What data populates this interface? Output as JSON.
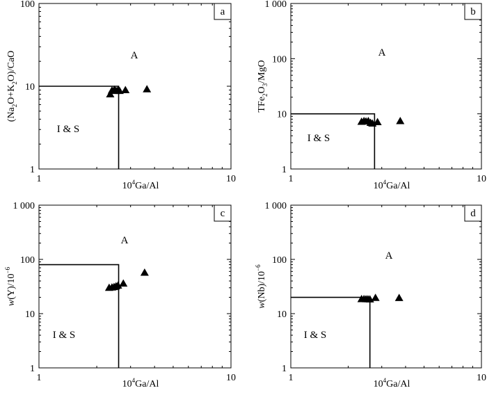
{
  "chart_data": [
    {
      "type": "scatter",
      "panel_label": "a",
      "xscale": "log",
      "yscale": "log",
      "xlim": [
        1,
        10
      ],
      "ylim": [
        1,
        100
      ],
      "xticks": [
        {
          "v": 1,
          "label": "1"
        },
        {
          "v": 10,
          "label": "10"
        }
      ],
      "yticks": [
        {
          "v": 1,
          "label": "1"
        },
        {
          "v": 10,
          "label": "10"
        },
        {
          "v": 100,
          "label": "100"
        }
      ],
      "xlabel": {
        "sup": "4",
        "pre": "10",
        "post": "Ga/Al"
      },
      "ylabel": {
        "parts": [
          {
            "t": "(Na"
          },
          {
            "t": "2",
            "sub": true
          },
          {
            "t": "O+K"
          },
          {
            "t": "2",
            "sub": true
          },
          {
            "t": "O)/CaO"
          }
        ]
      },
      "region_labels": {
        "upper": "A",
        "lower": "I & S"
      },
      "boundary": {
        "x": 2.6,
        "y": 10
      },
      "points": [
        {
          "x": 2.35,
          "y": 8.0
        },
        {
          "x": 2.4,
          "y": 8.9
        },
        {
          "x": 2.47,
          "y": 9.1
        },
        {
          "x": 2.52,
          "y": 8.8
        },
        {
          "x": 2.58,
          "y": 9.0
        },
        {
          "x": 2.63,
          "y": 8.8
        },
        {
          "x": 2.82,
          "y": 9.0
        },
        {
          "x": 3.65,
          "y": 9.2
        }
      ],
      "grid": false
    },
    {
      "type": "scatter",
      "panel_label": "b",
      "xscale": "log",
      "yscale": "log",
      "xlim": [
        1,
        10
      ],
      "ylim": [
        1,
        1000
      ],
      "xticks": [
        {
          "v": 1,
          "label": "1"
        },
        {
          "v": 10,
          "label": "10"
        }
      ],
      "yticks": [
        {
          "v": 1,
          "label": "1"
        },
        {
          "v": 10,
          "label": "10"
        },
        {
          "v": 100,
          "label": "100"
        },
        {
          "v": 1000,
          "label": "1 000"
        }
      ],
      "xlabel": {
        "sup": "4",
        "pre": "10",
        "post": "Ga/Al"
      },
      "ylabel": {
        "parts": [
          {
            "t": "TFe"
          },
          {
            "t": "2",
            "sub": true
          },
          {
            "t": "O"
          },
          {
            "t": "3",
            "sub": true
          },
          {
            "t": "/MgO"
          }
        ]
      },
      "region_labels": {
        "upper": "A",
        "lower": "I & S"
      },
      "boundary": {
        "x": 2.75,
        "y": 10
      },
      "points": [
        {
          "x": 2.35,
          "y": 7.2
        },
        {
          "x": 2.42,
          "y": 7.4
        },
        {
          "x": 2.48,
          "y": 7.3
        },
        {
          "x": 2.55,
          "y": 7.4
        },
        {
          "x": 2.62,
          "y": 6.9
        },
        {
          "x": 2.68,
          "y": 6.7
        },
        {
          "x": 2.85,
          "y": 7.1
        },
        {
          "x": 3.75,
          "y": 7.4
        }
      ],
      "grid": false
    },
    {
      "type": "scatter",
      "panel_label": "c",
      "xscale": "log",
      "yscale": "log",
      "xlim": [
        1,
        10
      ],
      "ylim": [
        1,
        1000
      ],
      "xticks": [
        {
          "v": 1,
          "label": "1"
        },
        {
          "v": 10,
          "label": "10"
        }
      ],
      "yticks": [
        {
          "v": 1,
          "label": "1"
        },
        {
          "v": 10,
          "label": "10"
        },
        {
          "v": 100,
          "label": "100"
        },
        {
          "v": 1000,
          "label": "1 000"
        }
      ],
      "xlabel": {
        "sup": "4",
        "pre": "10",
        "post": "Ga/Al"
      },
      "ylabel": {
        "parts": [
          {
            "t": "w",
            "italic": true
          },
          {
            "t": "(Y)/10"
          },
          {
            "t": "−6",
            "sup": true
          }
        ]
      },
      "region_labels": {
        "upper": "A",
        "lower": "I & S"
      },
      "boundary": {
        "x": 2.6,
        "y": 80
      },
      "points": [
        {
          "x": 2.32,
          "y": 30
        },
        {
          "x": 2.4,
          "y": 30.5
        },
        {
          "x": 2.46,
          "y": 31
        },
        {
          "x": 2.52,
          "y": 32
        },
        {
          "x": 2.58,
          "y": 33
        },
        {
          "x": 2.75,
          "y": 36
        },
        {
          "x": 3.55,
          "y": 57
        }
      ],
      "grid": false
    },
    {
      "type": "scatter",
      "panel_label": "d",
      "xscale": "log",
      "yscale": "log",
      "xlim": [
        1,
        10
      ],
      "ylim": [
        1,
        1000
      ],
      "xticks": [
        {
          "v": 1,
          "label": "1"
        },
        {
          "v": 10,
          "label": "10"
        }
      ],
      "yticks": [
        {
          "v": 1,
          "label": "1"
        },
        {
          "v": 10,
          "label": "10"
        },
        {
          "v": 100,
          "label": "100"
        },
        {
          "v": 1000,
          "label": "1 000"
        }
      ],
      "xlabel": {
        "sup": "4",
        "pre": "10",
        "post": "Ga/Al"
      },
      "ylabel": {
        "parts": [
          {
            "t": "w",
            "italic": true
          },
          {
            "t": "(Nb)/10"
          },
          {
            "t": "−6",
            "sup": true
          }
        ]
      },
      "region_labels": {
        "upper": "A",
        "lower": "I & S"
      },
      "boundary": {
        "x": 2.6,
        "y": 20
      },
      "points": [
        {
          "x": 2.35,
          "y": 18.6
        },
        {
          "x": 2.42,
          "y": 18.6
        },
        {
          "x": 2.48,
          "y": 18.5
        },
        {
          "x": 2.54,
          "y": 18.5
        },
        {
          "x": 2.6,
          "y": 18.4
        },
        {
          "x": 2.78,
          "y": 19.6
        },
        {
          "x": 3.7,
          "y": 19.5
        }
      ],
      "grid": false
    }
  ]
}
